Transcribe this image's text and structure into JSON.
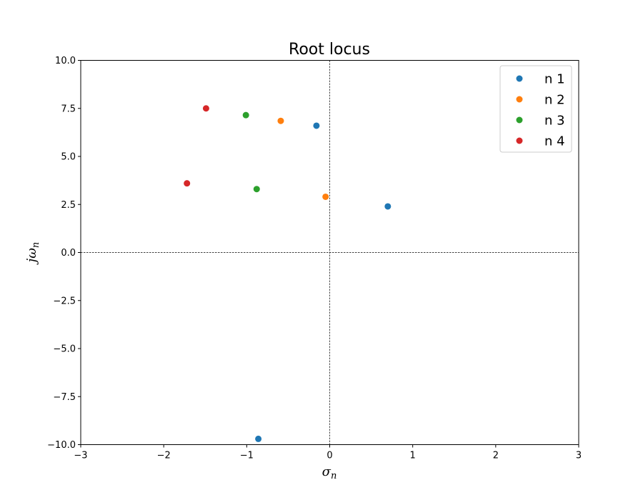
{
  "chart_data": {
    "type": "scatter",
    "title": "Root locus",
    "xlabel": {
      "base": "σ",
      "sub": "n"
    },
    "ylabel": {
      "base": "jω",
      "sub": "n"
    },
    "xlim": [
      -3,
      3
    ],
    "ylim": [
      -10,
      10
    ],
    "x_ticks": [
      -3,
      -2,
      -1,
      0,
      1,
      2,
      3
    ],
    "x_tick_labels": [
      "−3",
      "−2",
      "−1",
      "0",
      "1",
      "2",
      "3"
    ],
    "y_ticks": [
      10,
      7.5,
      5,
      2.5,
      0,
      -2.5,
      -5,
      -7.5,
      -10
    ],
    "y_tick_labels": [
      "10.0",
      "7.5",
      "5.0",
      "2.5",
      "0.0",
      "−2.5",
      "−5.0",
      "−7.5",
      "−10.0"
    ],
    "reference_lines": {
      "x": 0,
      "y": 0,
      "style": "dashed"
    },
    "grid": false,
    "legend_position": "top-right",
    "series": [
      {
        "name": "n 1",
        "color": "#1f77b4",
        "points": [
          {
            "x": -0.16,
            "y": 6.6
          },
          {
            "x": 0.7,
            "y": 2.4
          },
          {
            "x": -0.86,
            "y": -9.7
          }
        ]
      },
      {
        "name": "n 2",
        "color": "#ff7f0e",
        "points": [
          {
            "x": -0.59,
            "y": 6.85
          },
          {
            "x": -0.05,
            "y": 2.9
          }
        ]
      },
      {
        "name": "n 3",
        "color": "#2ca02c",
        "points": [
          {
            "x": -1.01,
            "y": 7.15
          },
          {
            "x": -0.88,
            "y": 3.3
          }
        ]
      },
      {
        "name": "n 4",
        "color": "#d62728",
        "points": [
          {
            "x": -1.49,
            "y": 7.5
          },
          {
            "x": -1.72,
            "y": 3.6
          }
        ]
      }
    ]
  }
}
